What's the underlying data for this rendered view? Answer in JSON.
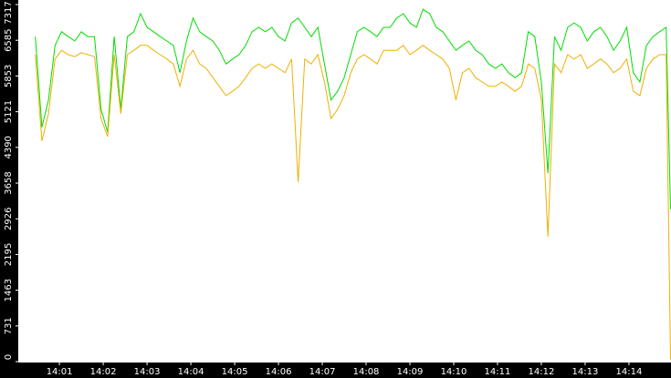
{
  "chart_data": {
    "type": "line",
    "x": [
      0.45,
      0.6,
      0.75,
      0.9,
      1.05,
      1.2,
      1.35,
      1.5,
      1.65,
      1.8,
      1.95,
      2.1,
      2.25,
      2.4,
      2.55,
      2.7,
      2.85,
      3,
      3.15,
      3.3,
      3.45,
      3.6,
      3.75,
      3.9,
      4.05,
      4.2,
      4.35,
      4.5,
      4.65,
      4.8,
      4.95,
      5.1,
      5.25,
      5.4,
      5.55,
      5.7,
      5.85,
      6,
      6.15,
      6.3,
      6.45,
      6.6,
      6.75,
      6.9,
      7.05,
      7.2,
      7.35,
      7.5,
      7.65,
      7.8,
      7.95,
      8.1,
      8.25,
      8.4,
      8.55,
      8.7,
      8.85,
      9,
      9.15,
      9.3,
      9.45,
      9.6,
      9.75,
      9.9,
      10.05,
      10.2,
      10.35,
      10.5,
      10.65,
      10.8,
      10.95,
      11.1,
      11.25,
      11.4,
      11.55,
      11.7,
      11.85,
      12,
      12.15,
      12.3,
      12.45,
      12.6,
      12.75,
      12.9,
      13.05,
      13.2,
      13.35,
      13.5,
      13.65,
      13.8,
      13.95,
      14.1,
      14.25,
      14.4,
      14.55,
      14.7,
      14.85,
      14.95
    ],
    "series": [
      {
        "color": "#00dd00",
        "values": [
          6660,
          4800,
          5360,
          6480,
          6760,
          6660,
          6570,
          6760,
          6660,
          6660,
          5170,
          4700,
          6660,
          5170,
          6660,
          6760,
          7130,
          6850,
          6760,
          6660,
          6570,
          6480,
          5920,
          6570,
          7040,
          6760,
          6660,
          6570,
          6380,
          6100,
          6200,
          6290,
          6480,
          6760,
          6850,
          6760,
          6850,
          6660,
          6570,
          6940,
          7040,
          6850,
          6660,
          6850,
          6100,
          5360,
          5540,
          5820,
          6290,
          6760,
          6850,
          6760,
          6660,
          6850,
          6850,
          7040,
          7130,
          6940,
          6850,
          7220,
          7130,
          6850,
          6760,
          6570,
          6380,
          6480,
          6570,
          6380,
          6290,
          6100,
          6010,
          6100,
          5920,
          5820,
          5920,
          6760,
          6660,
          5730,
          3860,
          6660,
          6380,
          6850,
          6940,
          6850,
          6570,
          6760,
          6850,
          6660,
          6380,
          6570,
          6850,
          5920,
          5730,
          6480,
          6660,
          6760,
          6850,
          3120
        ]
      },
      {
        "color": "#f0b000",
        "values": [
          6290,
          4520,
          5080,
          6200,
          6380,
          6290,
          6250,
          6330,
          6290,
          6250,
          4980,
          4610,
          6290,
          5080,
          6290,
          6380,
          6480,
          6480,
          6380,
          6290,
          6200,
          6100,
          5640,
          6200,
          6380,
          6100,
          6010,
          5820,
          5640,
          5450,
          5540,
          5640,
          5820,
          6010,
          6100,
          6010,
          6100,
          6010,
          5920,
          6200,
          3680,
          6200,
          6100,
          6290,
          5730,
          4980,
          5170,
          5450,
          5920,
          6200,
          6290,
          6200,
          6100,
          6380,
          6380,
          6380,
          6480,
          6290,
          6380,
          6480,
          6380,
          6290,
          6200,
          6010,
          5360,
          5920,
          6010,
          5820,
          5730,
          5640,
          5640,
          5730,
          5640,
          5540,
          5640,
          6100,
          6010,
          5360,
          2560,
          6100,
          5920,
          6290,
          6200,
          6290,
          6010,
          6100,
          6200,
          6100,
          5920,
          6010,
          6200,
          5540,
          5450,
          6010,
          6200,
          6290,
          6290,
          40
        ]
      }
    ],
    "xlim": [
      0.06,
      14.96
    ],
    "xticks": [
      {
        "value": 1,
        "label": "14:01"
      },
      {
        "value": 2,
        "label": "14:02"
      },
      {
        "value": 3,
        "label": "14:03"
      },
      {
        "value": 4,
        "label": "14:04"
      },
      {
        "value": 5,
        "label": "14:05"
      },
      {
        "value": 6,
        "label": "14:06"
      },
      {
        "value": 7,
        "label": "14:07"
      },
      {
        "value": 8,
        "label": "14:08"
      },
      {
        "value": 9,
        "label": "14:09"
      },
      {
        "value": 10,
        "label": "14:10"
      },
      {
        "value": 11,
        "label": "14:11"
      },
      {
        "value": 12,
        "label": "14:12"
      },
      {
        "value": 13,
        "label": "14:13"
      },
      {
        "value": 14,
        "label": "14:14"
      }
    ],
    "ylim": [
      0,
      7317
    ],
    "yticks": [
      0,
      731,
      1463,
      2195,
      2926,
      3658,
      4390,
      5121,
      5853,
      6585,
      7317
    ]
  }
}
